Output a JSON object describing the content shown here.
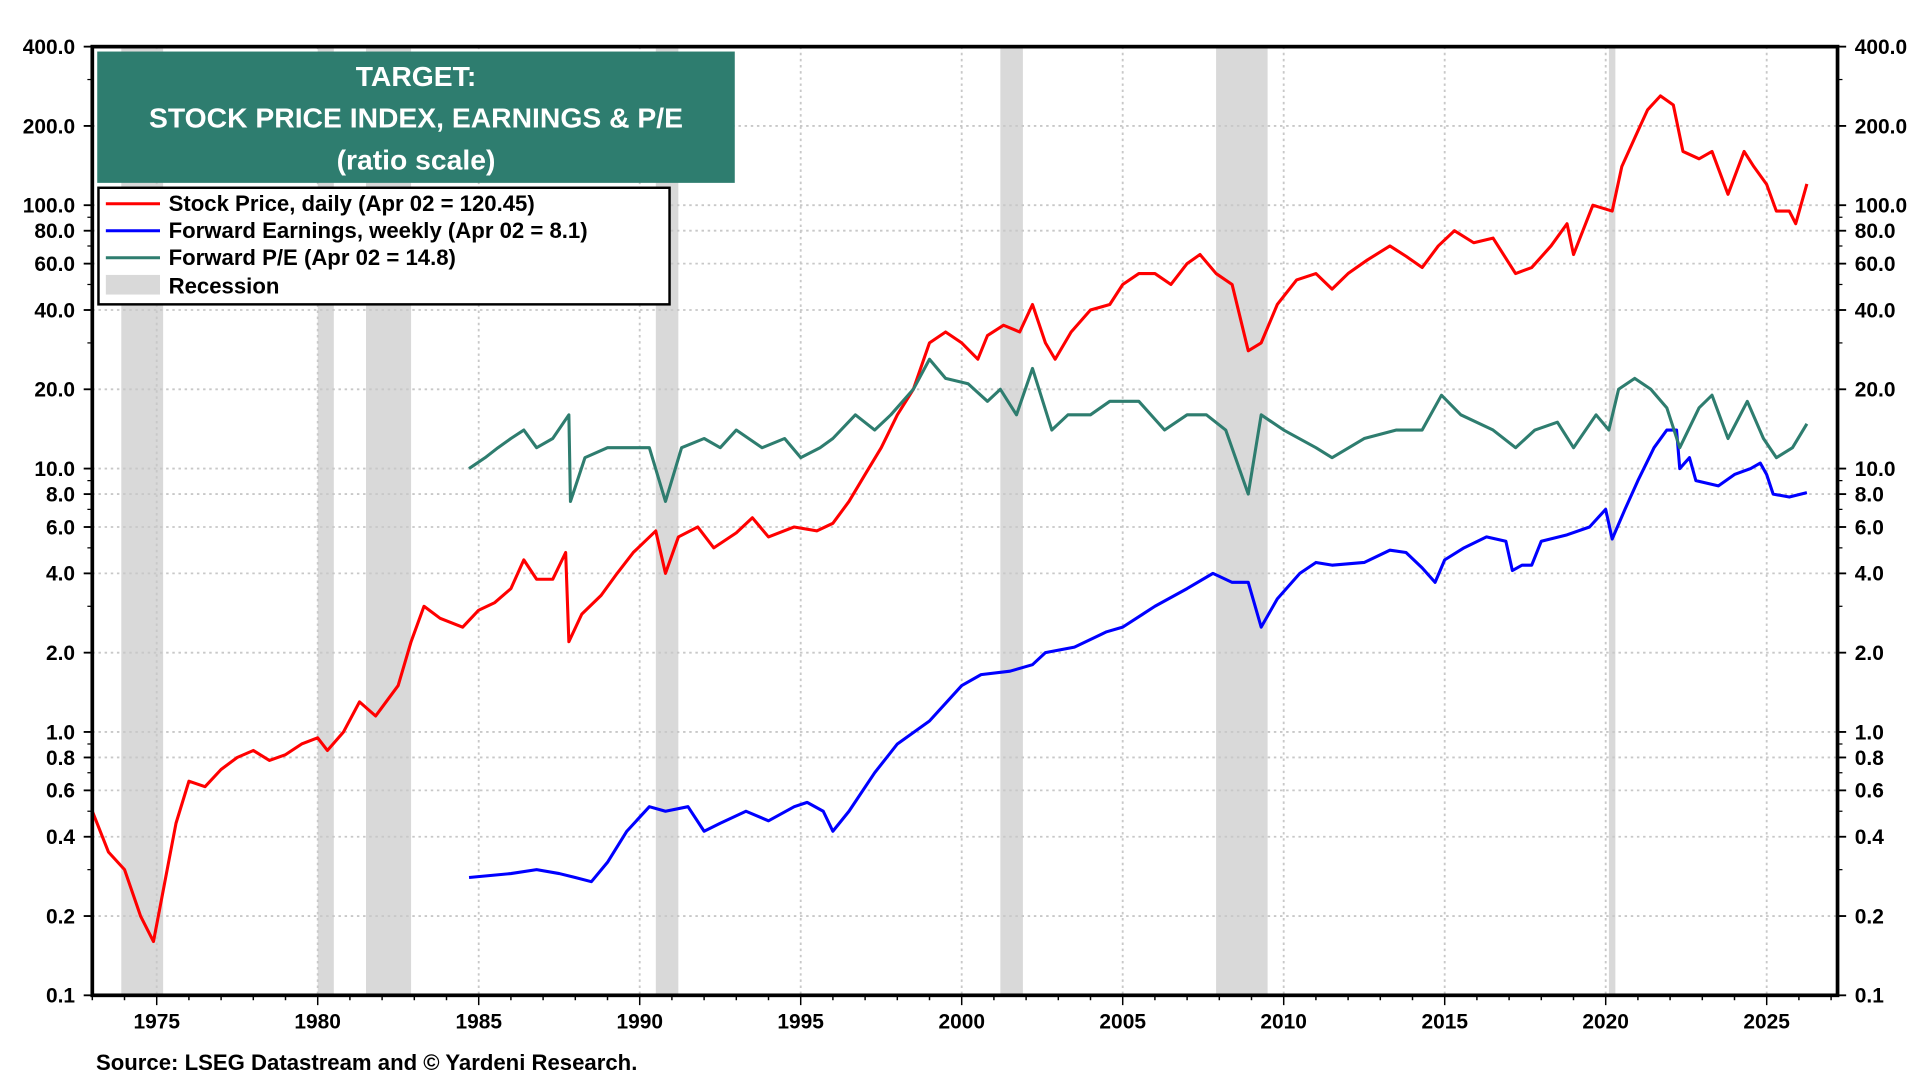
{
  "chart_data": {
    "type": "line",
    "title": [
      "TARGET:",
      "STOCK PRICE INDEX, EARNINGS & P/E",
      "(ratio scale)"
    ],
    "xlabel": "",
    "ylabel": "",
    "y_scale": "log",
    "ylim": [
      0.1,
      400
    ],
    "xlim": [
      1973.0,
      2027.2
    ],
    "y_ticks": [
      "400.0",
      "200.0",
      "100.0",
      "80.0",
      "60.0",
      "40.0",
      "20.0",
      "10.0",
      "8.0",
      "6.0",
      "4.0",
      "2.0",
      "1.0",
      "0.8",
      "0.6",
      "0.4",
      "0.2",
      "0.1"
    ],
    "y_tick_values": [
      400,
      200,
      100,
      80,
      60,
      40,
      20,
      10,
      8,
      6,
      4,
      2,
      1,
      0.8,
      0.6,
      0.4,
      0.2,
      0.1
    ],
    "x_ticks": [
      "1975",
      "1980",
      "1985",
      "1990",
      "1995",
      "2000",
      "2005",
      "2010",
      "2015",
      "2020",
      "2025"
    ],
    "x_tick_values": [
      1975,
      1980,
      1985,
      1990,
      1995,
      2000,
      2005,
      2010,
      2015,
      2020,
      2025
    ],
    "grid": true,
    "legend_position": "top-left",
    "legend": [
      {
        "label": "Stock Price, daily (Apr 02 = 120.45)",
        "color": "#ff0000",
        "kind": "line"
      },
      {
        "label": "Forward Earnings, weekly (Apr 02 = 8.1)",
        "color": "#0000ff",
        "kind": "line"
      },
      {
        "label": "Forward P/E (Apr 02 = 14.8)",
        "color": "#2e7d6f",
        "kind": "line"
      },
      {
        "label": "Recession",
        "color": "#d9d9d9",
        "kind": "band"
      }
    ],
    "recessions": [
      [
        1973.9,
        1975.2
      ],
      [
        1980.0,
        1980.5
      ],
      [
        1981.5,
        1982.9
      ],
      [
        1990.5,
        1991.2
      ],
      [
        2001.2,
        2001.9
      ],
      [
        2007.9,
        2009.5
      ],
      [
        2020.1,
        2020.3
      ]
    ],
    "series": [
      {
        "name": "Stock Price, daily",
        "color": "#ff0000",
        "x": [
          1973.0,
          1973.5,
          1974.0,
          1974.5,
          1974.9,
          1975.2,
          1975.6,
          1976.0,
          1976.5,
          1977.0,
          1977.5,
          1978.0,
          1978.5,
          1979.0,
          1979.5,
          1980.0,
          1980.3,
          1980.8,
          1981.3,
          1981.8,
          1982.5,
          1982.9,
          1983.3,
          1983.8,
          1984.5,
          1985.0,
          1985.5,
          1986.0,
          1986.4,
          1986.8,
          1987.3,
          1987.7,
          1987.8,
          1988.2,
          1988.8,
          1989.3,
          1989.8,
          1990.5,
          1990.8,
          1991.2,
          1991.8,
          1992.3,
          1993.0,
          1993.5,
          1994.0,
          1994.8,
          1995.5,
          1996.0,
          1996.5,
          1997.0,
          1997.5,
          1998.0,
          1998.5,
          1999.0,
          1999.5,
          2000.0,
          2000.5,
          2000.8,
          2001.3,
          2001.8,
          2002.2,
          2002.6,
          2002.9,
          2003.4,
          2004.0,
          2004.6,
          2005.0,
          2005.5,
          2006.0,
          2006.5,
          2007.0,
          2007.4,
          2007.9,
          2008.4,
          2008.9,
          2009.3,
          2009.8,
          2010.4,
          2011.0,
          2011.5,
          2012.0,
          2012.6,
          2013.3,
          2013.8,
          2014.3,
          2014.8,
          2015.3,
          2015.9,
          2016.5,
          2017.2,
          2017.7,
          2018.3,
          2018.8,
          2019.0,
          2019.6,
          2020.2,
          2020.5,
          2020.9,
          2021.3,
          2021.7,
          2022.1,
          2022.4,
          2022.9,
          2023.3,
          2023.8,
          2024.3,
          2024.6,
          2025.0,
          2025.3,
          2025.7,
          2025.9,
          2026.25
        ],
        "values": [
          0.5,
          0.35,
          0.3,
          0.2,
          0.16,
          0.25,
          0.45,
          0.65,
          0.62,
          0.72,
          0.8,
          0.85,
          0.78,
          0.82,
          0.9,
          0.95,
          0.85,
          1.0,
          1.3,
          1.15,
          1.5,
          2.2,
          3.0,
          2.7,
          2.5,
          2.9,
          3.1,
          3.5,
          4.5,
          3.8,
          3.8,
          4.8,
          2.2,
          2.8,
          3.3,
          4.0,
          4.8,
          5.8,
          4.0,
          5.5,
          6.0,
          5.0,
          5.7,
          6.5,
          5.5,
          6.0,
          5.8,
          6.2,
          7.5,
          9.5,
          12,
          16,
          20,
          30,
          33,
          30,
          26,
          32,
          35,
          33,
          42,
          30,
          26,
          33,
          40,
          42,
          50,
          55,
          55,
          50,
          60,
          65,
          55,
          50,
          28,
          30,
          42,
          52,
          55,
          48,
          55,
          62,
          70,
          64,
          58,
          70,
          80,
          72,
          75,
          55,
          58,
          70,
          85,
          65,
          100,
          95,
          140,
          180,
          230,
          260,
          240,
          160,
          150,
          160,
          110,
          160,
          140,
          120,
          95,
          95,
          85,
          120.45
        ]
      },
      {
        "name": "Forward Earnings, weekly",
        "color": "#0000ff",
        "x": [
          1984.7,
          1986.0,
          1986.8,
          1987.5,
          1988.0,
          1988.5,
          1989.0,
          1989.6,
          1990.3,
          1990.8,
          1991.5,
          1992.0,
          1992.5,
          1993.3,
          1994.0,
          1994.8,
          1995.2,
          1995.7,
          1996.0,
          1996.5,
          1997.3,
          1998.0,
          1999.0,
          2000.0,
          2000.6,
          2001.5,
          2002.2,
          2002.6,
          2003.5,
          2004.5,
          2005.0,
          2006.0,
          2007.0,
          2007.8,
          2008.4,
          2008.9,
          2009.3,
          2009.8,
          2010.5,
          2011.0,
          2011.5,
          2012.5,
          2013.3,
          2013.8,
          2014.3,
          2014.7,
          2015.0,
          2015.6,
          2016.3,
          2016.9,
          2017.1,
          2017.4,
          2017.7,
          2018.0,
          2018.8,
          2019.5,
          2020.0,
          2020.2,
          2020.6,
          2021.0,
          2021.5,
          2021.9,
          2022.2,
          2022.3,
          2022.6,
          2022.8,
          2023.5,
          2024.0,
          2024.5,
          2024.8,
          2025.0,
          2025.2,
          2025.7,
          2026.25
        ],
        "values": [
          0.28,
          0.29,
          0.3,
          0.29,
          0.28,
          0.27,
          0.32,
          0.42,
          0.52,
          0.5,
          0.52,
          0.42,
          0.45,
          0.5,
          0.46,
          0.52,
          0.54,
          0.5,
          0.42,
          0.5,
          0.7,
          0.9,
          1.1,
          1.5,
          1.65,
          1.7,
          1.8,
          2.0,
          2.1,
          2.4,
          2.5,
          3.0,
          3.5,
          4.0,
          3.7,
          3.7,
          2.5,
          3.2,
          4.0,
          4.4,
          4.3,
          4.4,
          4.9,
          4.8,
          4.2,
          3.7,
          4.5,
          5.0,
          5.5,
          5.3,
          4.1,
          4.3,
          4.3,
          5.3,
          5.6,
          6.0,
          7.0,
          5.4,
          7.0,
          9.0,
          12,
          14,
          14,
          10,
          11,
          9,
          8.6,
          9.5,
          10,
          10.5,
          9.5,
          8.0,
          7.8,
          8.1
        ]
      },
      {
        "name": "Forward P/E",
        "color": "#2e7d6f",
        "x": [
          1984.7,
          1985.2,
          1985.6,
          1986.0,
          1986.4,
          1986.8,
          1987.3,
          1987.8,
          1987.85,
          1988.3,
          1989.0,
          1989.6,
          1990.3,
          1990.8,
          1991.3,
          1992.0,
          1992.5,
          1993.0,
          1993.8,
          1994.5,
          1995.0,
          1995.6,
          1996.0,
          1996.7,
          1997.3,
          1997.8,
          1998.5,
          1999.0,
          1999.5,
          2000.2,
          2000.8,
          2001.2,
          2001.7,
          2002.2,
          2002.8,
          2003.3,
          2004.0,
          2004.6,
          2005.5,
          2006.3,
          2007.0,
          2007.6,
          2008.2,
          2008.9,
          2009.3,
          2010.0,
          2011.0,
          2011.5,
          2012.5,
          2013.5,
          2014.3,
          2014.9,
          2015.5,
          2016.5,
          2017.2,
          2017.8,
          2018.5,
          2019.0,
          2019.7,
          2020.1,
          2020.4,
          2020.9,
          2021.4,
          2021.9,
          2022.3,
          2022.9,
          2023.3,
          2023.8,
          2024.4,
          2024.9,
          2025.3,
          2025.8,
          2026.25
        ],
        "values": [
          10,
          11,
          12,
          13,
          14,
          12,
          13,
          16,
          7.5,
          11,
          12,
          12,
          12,
          7.5,
          12,
          13,
          12,
          14,
          12,
          13,
          11,
          12,
          13,
          16,
          14,
          16,
          20,
          26,
          22,
          21,
          18,
          20,
          16,
          24,
          14,
          16,
          16,
          18,
          18,
          14,
          16,
          16,
          14,
          8,
          16,
          14,
          12,
          11,
          13,
          14,
          14,
          19,
          16,
          14,
          12,
          14,
          15,
          12,
          16,
          14,
          20,
          22,
          20,
          17,
          12,
          17,
          19,
          13,
          18,
          13,
          11,
          12,
          14.8
        ]
      }
    ]
  },
  "source": "Source: LSEG Datastream and © Yardeni Research."
}
